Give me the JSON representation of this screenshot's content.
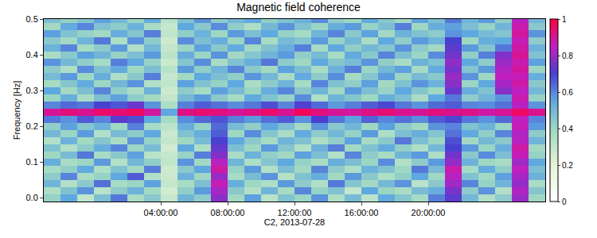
{
  "chart_data": {
    "type": "heatmap",
    "title": "Magnetic field coherence",
    "x_label": "C2, 2013-07-28",
    "y_label": "Frequency [Hz]",
    "x": [
      -2.5,
      -1.5,
      -0.5,
      0.5,
      1.5,
      2.5,
      3.5,
      4.5,
      5.5,
      6.5,
      7.5,
      8.5,
      9.5,
      10.5,
      11.5,
      12.5,
      13.5,
      14.5,
      15.5,
      16.5,
      17.5,
      18.5,
      19.5,
      20.5,
      21.5,
      22.5,
      23.5,
      24.5,
      25.5,
      26.5
    ],
    "y": [
      0,
      0.02,
      0.04,
      0.06,
      0.08,
      0.1,
      0.12,
      0.14,
      0.16,
      0.18,
      0.2,
      0.22,
      0.24,
      0.26,
      0.28,
      0.3,
      0.32,
      0.34,
      0.36,
      0.38,
      0.4,
      0.42,
      0.44,
      0.46,
      0.48,
      0.5
    ],
    "cells": [
      [
        0.42,
        0.55,
        0.31,
        0.48,
        0.62,
        0.37,
        0.45,
        0.29,
        0.51,
        0.44,
        0.78,
        0.39,
        0.56,
        0.33,
        0.47,
        0.41,
        0.58,
        0.36,
        0.49,
        0.32,
        0.54,
        0.46,
        0.38,
        0.61,
        0.72,
        0.5,
        0.35,
        0.44,
        0.8,
        0.4
      ],
      [
        0.36,
        0.47,
        0.58,
        0.33,
        0.44,
        0.52,
        0.39,
        0.26,
        0.43,
        0.57,
        0.82,
        0.45,
        0.34,
        0.51,
        0.38,
        0.6,
        0.42,
        0.47,
        0.3,
        0.55,
        0.41,
        0.37,
        0.49,
        0.53,
        0.76,
        0.44,
        0.58,
        0.35,
        0.83,
        0.46
      ],
      [
        0.51,
        0.34,
        0.45,
        0.63,
        0.38,
        0.41,
        0.56,
        0.3,
        0.37,
        0.48,
        0.86,
        0.53,
        0.4,
        0.36,
        0.57,
        0.44,
        0.35,
        0.62,
        0.46,
        0.39,
        0.5,
        0.58,
        0.33,
        0.45,
        0.81,
        0.6,
        0.42,
        0.51,
        0.79,
        0.37
      ],
      [
        0.44,
        0.6,
        0.37,
        0.42,
        0.55,
        0.66,
        0.35,
        0.28,
        0.52,
        0.4,
        0.8,
        0.38,
        0.49,
        0.58,
        0.34,
        0.47,
        0.53,
        0.39,
        0.57,
        0.45,
        0.36,
        0.43,
        0.55,
        0.4,
        0.84,
        0.47,
        0.39,
        0.56,
        0.82,
        0.52
      ],
      [
        0.38,
        0.43,
        0.54,
        0.36,
        0.47,
        0.39,
        0.61,
        0.27,
        0.45,
        0.55,
        0.88,
        0.42,
        0.57,
        0.35,
        0.48,
        0.39,
        0.6,
        0.44,
        0.36,
        0.52,
        0.47,
        0.4,
        0.62,
        0.49,
        0.87,
        0.38,
        0.54,
        0.43,
        0.85,
        0.48
      ],
      [
        0.53,
        0.37,
        0.41,
        0.57,
        0.34,
        0.5,
        0.43,
        0.31,
        0.58,
        0.39,
        0.84,
        0.51,
        0.36,
        0.46,
        0.55,
        0.42,
        0.37,
        0.53,
        0.48,
        0.41,
        0.59,
        0.35,
        0.44,
        0.57,
        0.79,
        0.52,
        0.4,
        0.37,
        0.81,
        0.55
      ],
      [
        0.4,
        0.49,
        0.62,
        0.38,
        0.45,
        0.56,
        0.33,
        0.29,
        0.42,
        0.61,
        0.77,
        0.37,
        0.52,
        0.43,
        0.39,
        0.56,
        0.48,
        0.35,
        0.6,
        0.44,
        0.38,
        0.51,
        0.57,
        0.36,
        0.75,
        0.45,
        0.59,
        0.48,
        0.86,
        0.42
      ],
      [
        0.47,
        0.35,
        0.44,
        0.53,
        0.6,
        0.41,
        0.49,
        0.26,
        0.55,
        0.36,
        0.73,
        0.48,
        0.4,
        0.57,
        0.46,
        0.35,
        0.52,
        0.61,
        0.39,
        0.47,
        0.54,
        0.43,
        0.36,
        0.5,
        0.7,
        0.57,
        0.41,
        0.53,
        0.88,
        0.39
      ],
      [
        0.35,
        0.52,
        0.39,
        0.46,
        0.37,
        0.58,
        0.42,
        0.3,
        0.4,
        0.49,
        0.7,
        0.55,
        0.45,
        0.38,
        0.51,
        0.47,
        0.36,
        0.43,
        0.56,
        0.38,
        0.45,
        0.62,
        0.48,
        0.41,
        0.68,
        0.39,
        0.5,
        0.45,
        0.84,
        0.51
      ],
      [
        0.5,
        0.41,
        0.57,
        0.35,
        0.49,
        0.44,
        0.55,
        0.28,
        0.47,
        0.53,
        0.66,
        0.4,
        0.59,
        0.46,
        0.37,
        0.54,
        0.44,
        0.5,
        0.42,
        0.57,
        0.36,
        0.48,
        0.53,
        0.46,
        0.63,
        0.55,
        0.43,
        0.6,
        0.83,
        0.44
      ],
      [
        0.43,
        0.56,
        0.46,
        0.52,
        0.4,
        0.61,
        0.38,
        0.32,
        0.53,
        0.42,
        0.64,
        0.49,
        0.43,
        0.55,
        0.48,
        0.39,
        0.58,
        0.45,
        0.51,
        0.4,
        0.56,
        0.44,
        0.39,
        0.58,
        0.6,
        0.47,
        0.52,
        0.41,
        0.86,
        0.57
      ],
      [
        0.62,
        0.58,
        0.66,
        0.6,
        0.72,
        0.68,
        0.55,
        0.38,
        0.59,
        0.64,
        0.67,
        0.61,
        0.57,
        0.63,
        0.66,
        0.58,
        0.7,
        0.62,
        0.56,
        0.65,
        0.6,
        0.63,
        0.59,
        0.66,
        0.69,
        0.62,
        0.58,
        0.64,
        0.85,
        0.6
      ],
      [
        0.9,
        0.93,
        0.91,
        0.95,
        0.94,
        0.96,
        0.89,
        0.55,
        0.92,
        0.94,
        0.93,
        0.9,
        0.92,
        0.95,
        0.91,
        0.97,
        0.93,
        0.9,
        0.89,
        0.92,
        0.94,
        0.91,
        0.9,
        0.93,
        0.91,
        0.92,
        0.88,
        0.9,
        0.96,
        0.91
      ],
      [
        0.6,
        0.64,
        0.62,
        0.7,
        0.67,
        0.74,
        0.58,
        0.36,
        0.61,
        0.66,
        0.63,
        0.59,
        0.62,
        0.68,
        0.6,
        0.71,
        0.64,
        0.57,
        0.61,
        0.66,
        0.69,
        0.62,
        0.58,
        0.64,
        0.66,
        0.6,
        0.59,
        0.63,
        0.84,
        0.58
      ],
      [
        0.41,
        0.53,
        0.37,
        0.48,
        0.56,
        0.44,
        0.39,
        0.3,
        0.5,
        0.57,
        0.45,
        0.38,
        0.54,
        0.47,
        0.42,
        0.59,
        0.36,
        0.51,
        0.46,
        0.4,
        0.53,
        0.48,
        0.37,
        0.55,
        0.62,
        0.44,
        0.51,
        0.58,
        0.87,
        0.42
      ],
      [
        0.55,
        0.39,
        0.48,
        0.6,
        0.43,
        0.37,
        0.52,
        0.27,
        0.44,
        0.38,
        0.56,
        0.49,
        0.41,
        0.53,
        0.6,
        0.45,
        0.51,
        0.39,
        0.57,
        0.48,
        0.42,
        0.55,
        0.46,
        0.4,
        0.74,
        0.53,
        0.47,
        0.78,
        0.85,
        0.5
      ],
      [
        0.38,
        0.46,
        0.54,
        0.41,
        0.5,
        0.58,
        0.35,
        0.31,
        0.56,
        0.47,
        0.42,
        0.55,
        0.37,
        0.44,
        0.51,
        0.38,
        0.6,
        0.47,
        0.43,
        0.56,
        0.39,
        0.47,
        0.58,
        0.52,
        0.78,
        0.41,
        0.55,
        0.82,
        0.88,
        0.45
      ],
      [
        0.49,
        0.57,
        0.4,
        0.53,
        0.36,
        0.45,
        0.61,
        0.29,
        0.39,
        0.55,
        0.48,
        0.43,
        0.58,
        0.5,
        0.37,
        0.54,
        0.44,
        0.59,
        0.38,
        0.46,
        0.57,
        0.41,
        0.49,
        0.45,
        0.8,
        0.58,
        0.4,
        0.85,
        0.86,
        0.53
      ],
      [
        0.44,
        0.36,
        0.59,
        0.47,
        0.54,
        0.4,
        0.48,
        0.33,
        0.57,
        0.43,
        0.51,
        0.6,
        0.45,
        0.39,
        0.56,
        0.48,
        0.37,
        0.52,
        0.61,
        0.41,
        0.5,
        0.56,
        0.38,
        0.54,
        0.76,
        0.46,
        0.57,
        0.83,
        0.89,
        0.41
      ],
      [
        0.58,
        0.5,
        0.43,
        0.38,
        0.61,
        0.55,
        0.42,
        0.28,
        0.46,
        0.59,
        0.37,
        0.47,
        0.53,
        0.62,
        0.44,
        0.4,
        0.55,
        0.46,
        0.49,
        0.58,
        0.43,
        0.37,
        0.52,
        0.47,
        0.79,
        0.55,
        0.44,
        0.8,
        0.87,
        0.56
      ],
      [
        0.37,
        0.45,
        0.56,
        0.51,
        0.42,
        0.48,
        0.57,
        0.32,
        0.53,
        0.41,
        0.58,
        0.39,
        0.46,
        0.51,
        0.57,
        0.43,
        0.49,
        0.38,
        0.54,
        0.45,
        0.6,
        0.48,
        0.41,
        0.59,
        0.75,
        0.43,
        0.61,
        0.77,
        0.9,
        0.47
      ],
      [
        0.52,
        0.6,
        0.38,
        0.44,
        0.57,
        0.35,
        0.5,
        0.3,
        0.41,
        0.56,
        0.45,
        0.54,
        0.39,
        0.47,
        0.53,
        0.61,
        0.38,
        0.55,
        0.43,
        0.5,
        0.46,
        0.58,
        0.44,
        0.39,
        0.72,
        0.57,
        0.46,
        0.62,
        0.88,
        0.52
      ],
      [
        0.45,
        0.39,
        0.51,
        0.62,
        0.36,
        0.58,
        0.44,
        0.27,
        0.59,
        0.48,
        0.53,
        0.41,
        0.6,
        0.38,
        0.49,
        0.46,
        0.57,
        0.42,
        0.5,
        0.37,
        0.55,
        0.43,
        0.57,
        0.51,
        0.7,
        0.4,
        0.53,
        0.55,
        0.86,
        0.44
      ],
      [
        0.56,
        0.47,
        0.42,
        0.39,
        0.53,
        0.46,
        0.61,
        0.31,
        0.43,
        0.52,
        0.4,
        0.57,
        0.48,
        0.55,
        0.42,
        0.38,
        0.51,
        0.6,
        0.45,
        0.56,
        0.39,
        0.52,
        0.47,
        0.44,
        0.58,
        0.55,
        0.49,
        0.46,
        0.89,
        0.58
      ],
      [
        0.39,
        0.54,
        0.6,
        0.47,
        0.44,
        0.52,
        0.37,
        0.29,
        0.55,
        0.45,
        0.59,
        0.43,
        0.36,
        0.5,
        0.58,
        0.47,
        0.41,
        0.53,
        0.57,
        0.42,
        0.48,
        0.61,
        0.4,
        0.53,
        0.56,
        0.48,
        0.42,
        0.51,
        0.87,
        0.45
      ],
      [
        0.48,
        0.42,
        0.46,
        0.56,
        0.5,
        0.41,
        0.53,
        0.33,
        0.47,
        0.58,
        0.44,
        0.5,
        0.55,
        0.43,
        0.47,
        0.52,
        0.59,
        0.44,
        0.4,
        0.54,
        0.45,
        0.39,
        0.56,
        0.48,
        0.62,
        0.51,
        0.57,
        0.43,
        0.84,
        0.5
      ]
    ],
    "xlim": [
      -3,
      27
    ],
    "xticks": [
      {
        "value": 4,
        "label": "04:00:00"
      },
      {
        "value": 8,
        "label": "08:00:00"
      },
      {
        "value": 12,
        "label": "12:00:00"
      },
      {
        "value": 16,
        "label": "16:00:00"
      },
      {
        "value": 20,
        "label": "20:00:00"
      }
    ],
    "ylim": [
      -0.01,
      0.5
    ],
    "yticks": [
      {
        "value": 0,
        "label": "0.0"
      },
      0.1,
      0.2,
      0.3,
      0.4,
      0.5
    ],
    "color_range": [
      0,
      1
    ],
    "color_ticks": [
      0,
      0.2,
      0.4,
      0.6,
      0.8,
      1
    ]
  }
}
